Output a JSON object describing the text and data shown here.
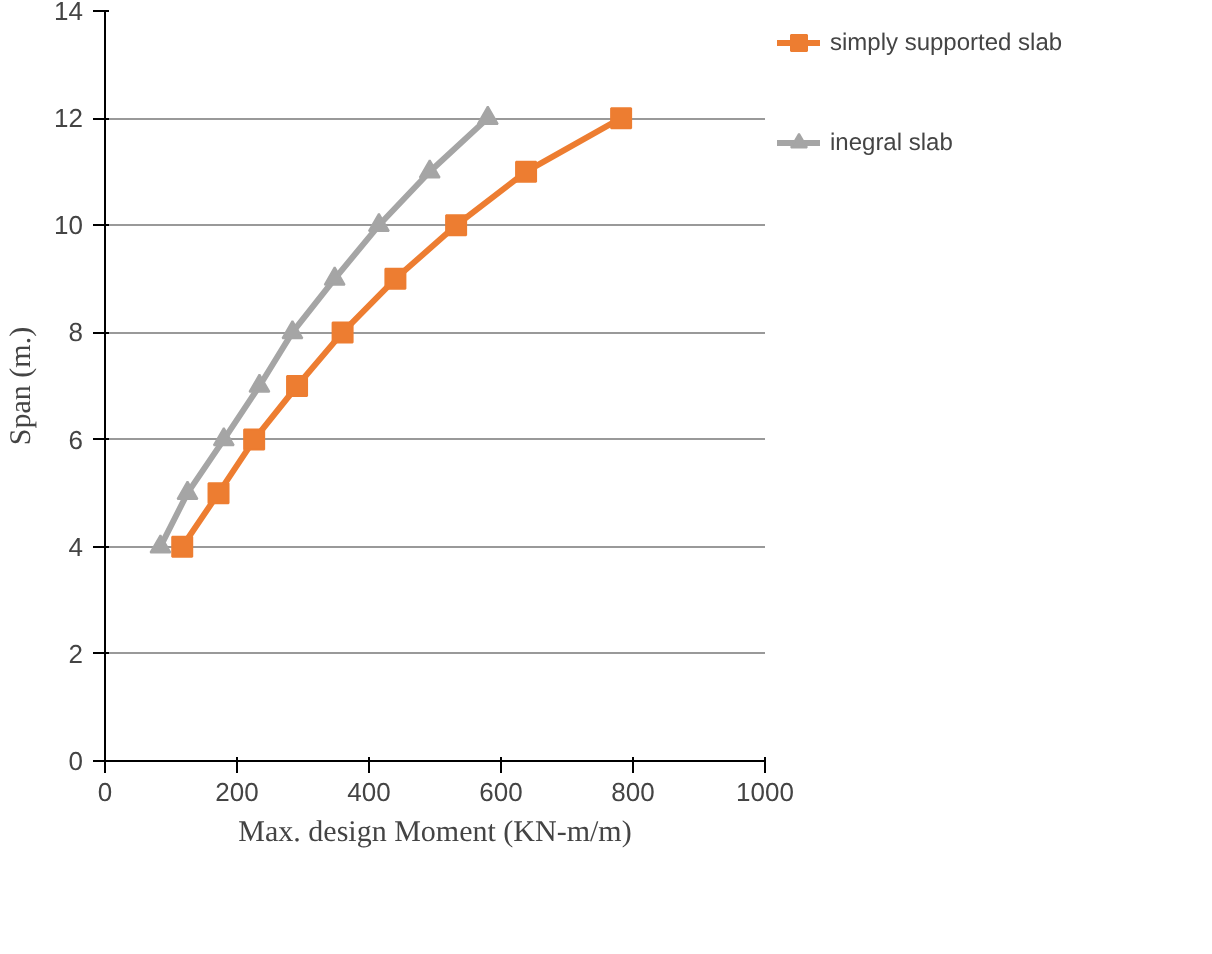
{
  "chart_data": {
    "type": "line",
    "xlabel": "Max. design Moment (KN-m/m)",
    "ylabel": "Span (m.)",
    "xlim": [
      0,
      1000
    ],
    "xticks": [
      0,
      200,
      400,
      600,
      800,
      1000
    ],
    "ylim": [
      0,
      14
    ],
    "yticks": [
      0,
      2,
      4,
      6,
      8,
      10,
      12,
      14
    ],
    "grid": "y",
    "legend": "right",
    "series": [
      {
        "name": "simply supported slab",
        "color": "#ed7d31",
        "marker": "square",
        "x": [
          117,
          172,
          226,
          291,
          360,
          440,
          532,
          638,
          782
        ],
        "values": [
          4,
          5,
          6,
          7,
          8,
          9,
          10,
          11,
          12
        ]
      },
      {
        "name": "inegral slab",
        "color": "#a5a5a5",
        "marker": "triangle",
        "x": [
          84,
          125,
          180,
          234,
          284,
          348,
          415,
          492,
          580
        ],
        "values": [
          4,
          5,
          6,
          7,
          8,
          9,
          10,
          11,
          12
        ]
      }
    ]
  }
}
